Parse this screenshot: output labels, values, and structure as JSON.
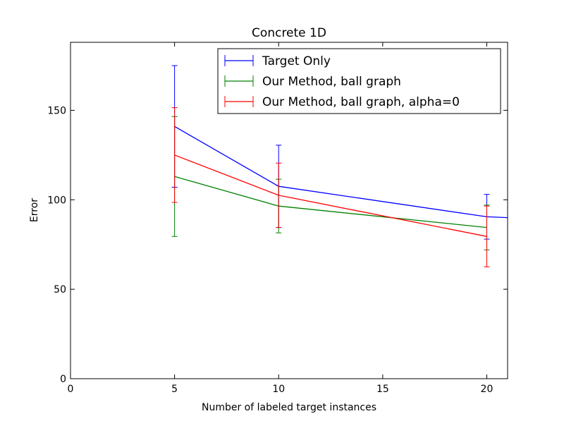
{
  "chart_data": {
    "type": "line",
    "title": "Concrete 1D",
    "xlabel": "Number of labeled target instances",
    "ylabel": "Error",
    "xlim": [
      0,
      21
    ],
    "ylim": [
      0,
      188
    ],
    "xticks": [
      0,
      5,
      10,
      15,
      20
    ],
    "yticks": [
      0,
      50,
      100,
      150
    ],
    "grid": false,
    "legend_position": "top-right",
    "series": [
      {
        "name": "Target Only",
        "color": "#0000ff",
        "x": [
          5,
          10,
          20,
          21
        ],
        "y": [
          141,
          107.5,
          90.5,
          90
        ],
        "error": [
          34,
          23,
          12.5,
          null
        ]
      },
      {
        "name": "Our Method, ball graph",
        "color": "#008000",
        "x": [
          5,
          10,
          20
        ],
        "y": [
          113,
          96.5,
          84.5
        ],
        "error": [
          33.5,
          15,
          12.5
        ]
      },
      {
        "name": "Our Method, ball graph, alpha=0",
        "color": "#ff0000",
        "x": [
          5,
          10,
          20
        ],
        "y": [
          125,
          102.5,
          79.5
        ],
        "error": [
          26.5,
          18,
          17
        ]
      }
    ]
  }
}
